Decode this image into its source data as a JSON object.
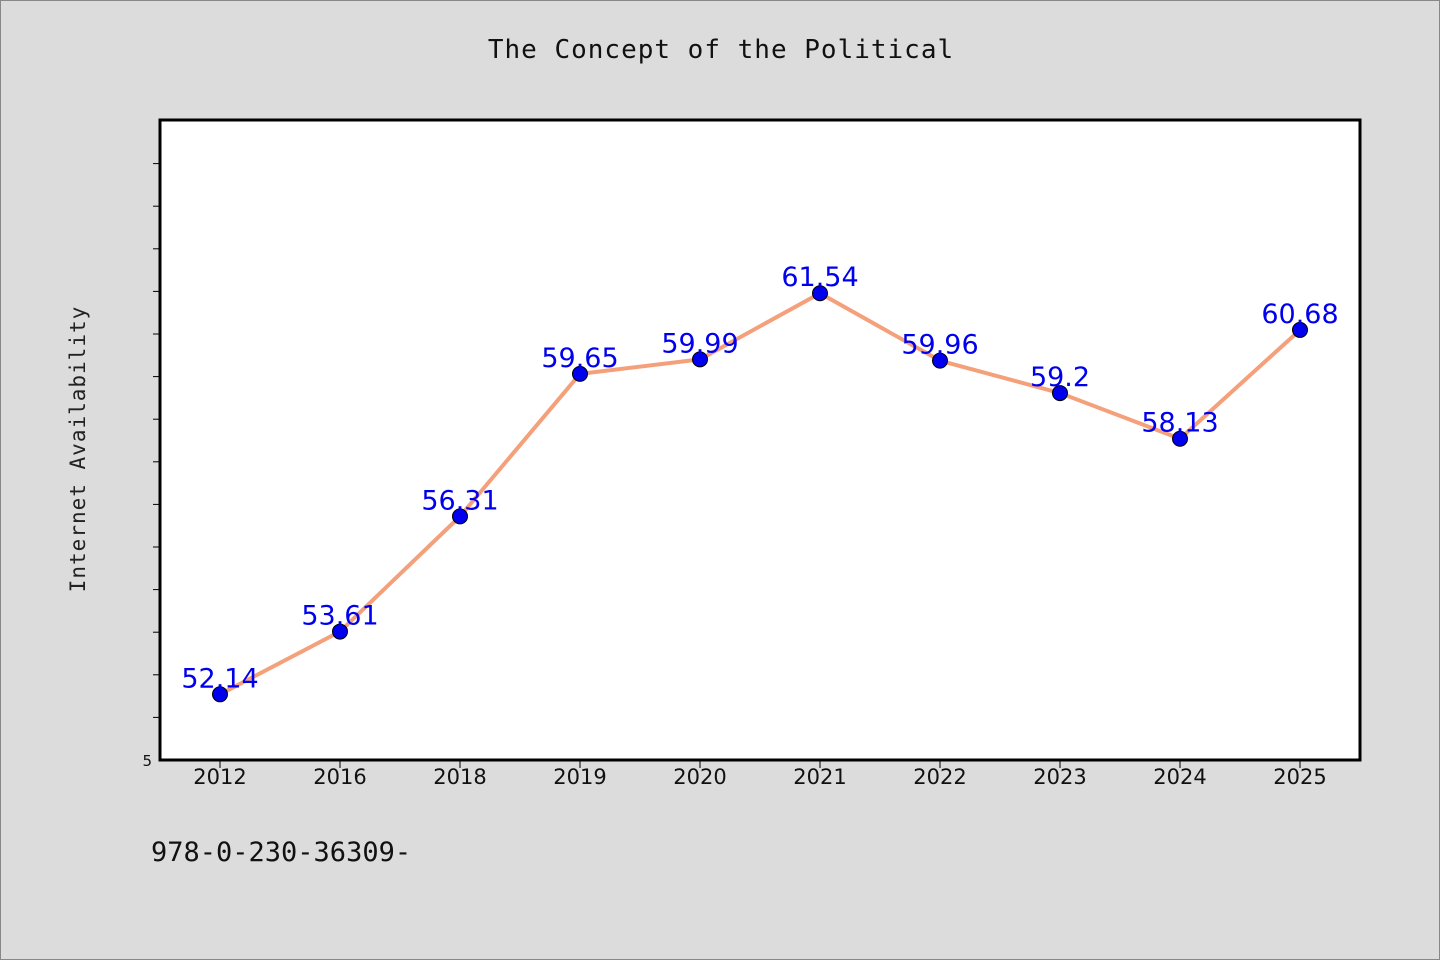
{
  "title": "The Concept of the Political",
  "footnote": "978-0-230-36309-",
  "chart_data": {
    "type": "line",
    "title": "The Concept of the Political",
    "xlabel": "",
    "ylabel": "Internet Availability",
    "categories": [
      "2012",
      "2016",
      "2018",
      "2019",
      "2020",
      "2021",
      "2022",
      "2023",
      "2024",
      "2025"
    ],
    "values": [
      52.14,
      53.61,
      56.31,
      59.65,
      59.99,
      61.54,
      59.96,
      59.2,
      58.13,
      60.68
    ],
    "data_labels": [
      "52.14",
      "53.61",
      "56.31",
      "59.65",
      "59.99",
      "61.54",
      "59.96",
      "59.2",
      "58.13",
      "60.68"
    ],
    "y_tick_labels": [
      "5"
    ],
    "ylim": [
      50.6,
      65.6
    ],
    "grid": false,
    "colors": {
      "line": "#f4a07a",
      "marker": "#0000ee",
      "data_label": "#0000ee",
      "plot_background": "#ffffff",
      "page_background": "#dcdcdc"
    }
  }
}
